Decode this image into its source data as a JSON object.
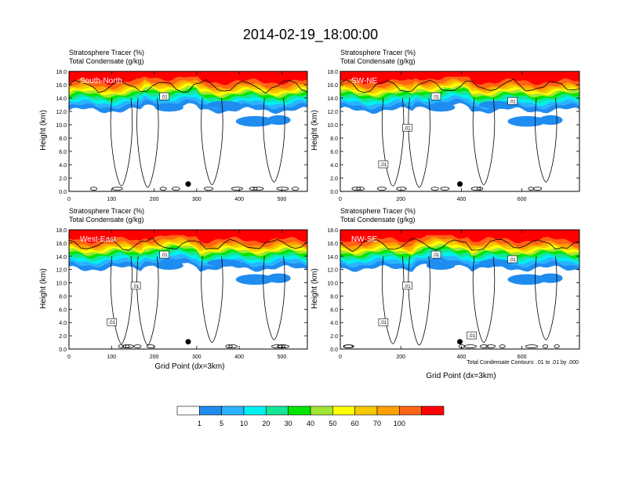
{
  "title": "2014-02-19_18:00:00",
  "panel_line1": "Stratosphere Tracer   (%)",
  "panel_line2": "Total Condensate   (g/kg)",
  "ylabel": "Height (km)",
  "xlabel": "Grid Point (dx=3km)",
  "contour_note": "Total Condensate Contours: .01 to .01 by .000",
  "colors": [
    "#ffffff",
    "#1f8cf0",
    "#2ab4ff",
    "#00f0f0",
    "#14e696",
    "#00e600",
    "#a0e632",
    "#ffff00",
    "#f5c800",
    "#ffa000",
    "#ff6414",
    "#ff0000"
  ],
  "colorbar_labels": [
    "1",
    "5",
    "10",
    "20",
    "30",
    "40",
    "50",
    "60",
    "70",
    "100"
  ],
  "chart_data": [
    {
      "type": "heatmap",
      "name": "South-North",
      "label": "South-North",
      "xlim": [
        0,
        560
      ],
      "xticks": [
        "0",
        "100",
        "200",
        "300",
        "400",
        "500"
      ],
      "ylim": [
        0,
        18
      ],
      "yticks": [
        "0.0",
        "2.0",
        "4.0",
        "6.0",
        "8.0",
        "10.0",
        "12.0",
        "14.0",
        "16.0",
        "18.0"
      ],
      "contour_labels": [
        ".01"
      ],
      "marker_x": 280,
      "marker_y": 1.1
    },
    {
      "type": "heatmap",
      "name": "SW-NE",
      "label": "SW-NE",
      "xlim": [
        0,
        790
      ],
      "xticks": [
        "0",
        "200",
        "400",
        "600"
      ],
      "ylim": [
        0,
        18
      ],
      "yticks": [
        "0.0",
        "2.0",
        "4.0",
        "6.0",
        "8.0",
        "10.0",
        "12.0",
        "14.0",
        "16.0",
        "18.0"
      ],
      "contour_labels": [
        ".01",
        ".01",
        ".01",
        ".01"
      ],
      "marker_x": 395,
      "marker_y": 1.1
    },
    {
      "type": "heatmap",
      "name": "West-East",
      "label": "West-East",
      "xlim": [
        0,
        560
      ],
      "xticks": [
        "0",
        "100",
        "200",
        "300",
        "400",
        "500"
      ],
      "ylim": [
        0,
        18
      ],
      "yticks": [
        "0.0",
        "2.0",
        "4.0",
        "6.0",
        "8.0",
        "10.0",
        "12.0",
        "14.0",
        "16.0",
        "18.0"
      ],
      "contour_labels": [
        ".01",
        ".01",
        ".01"
      ],
      "marker_x": 280,
      "marker_y": 1.1
    },
    {
      "type": "heatmap",
      "name": "NW-SE",
      "label": "NW-SE",
      "xlim": [
        0,
        790
      ],
      "xticks": [
        "0",
        "200",
        "400",
        "600"
      ],
      "ylim": [
        0,
        18
      ],
      "yticks": [
        "0.0",
        "2.0",
        "4.0",
        "6.0",
        "8.0",
        "10.0",
        "12.0",
        "14.0",
        "16.0",
        "18.0"
      ],
      "contour_labels": [
        ".01",
        ".01",
        ".01",
        ".01",
        ".01"
      ],
      "marker_x": 395,
      "marker_y": 1.1
    }
  ]
}
